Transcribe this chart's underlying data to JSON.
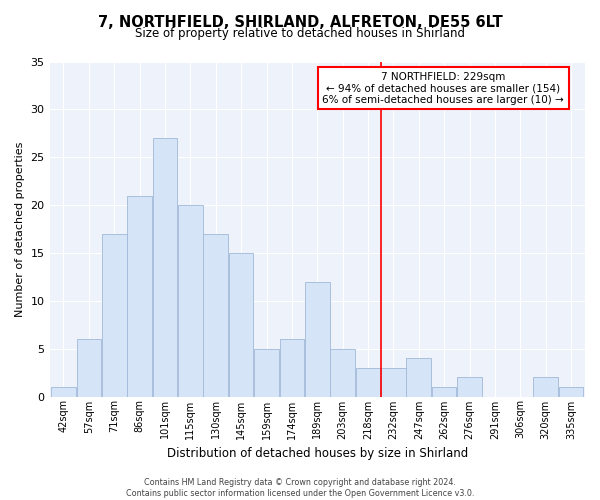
{
  "title": "7, NORTHFIELD, SHIRLAND, ALFRETON, DE55 6LT",
  "subtitle": "Size of property relative to detached houses in Shirland",
  "xlabel": "Distribution of detached houses by size in Shirland",
  "ylabel": "Number of detached properties",
  "bin_labels": [
    "42sqm",
    "57sqm",
    "71sqm",
    "86sqm",
    "101sqm",
    "115sqm",
    "130sqm",
    "145sqm",
    "159sqm",
    "174sqm",
    "189sqm",
    "203sqm",
    "218sqm",
    "232sqm",
    "247sqm",
    "262sqm",
    "276sqm",
    "291sqm",
    "306sqm",
    "320sqm",
    "335sqm"
  ],
  "bar_heights": [
    1,
    6,
    17,
    21,
    27,
    20,
    17,
    15,
    5,
    6,
    12,
    5,
    3,
    3,
    4,
    1,
    2,
    0,
    0,
    2,
    1
  ],
  "bar_color": "#d6e4f7",
  "bar_edge_color": "#a0b8d8",
  "vline_x_index": 13,
  "vline_color": "red",
  "annotation_text": "7 NORTHFIELD: 229sqm\n← 94% of detached houses are smaller (154)\n6% of semi-detached houses are larger (10) →",
  "annotation_box_color": "white",
  "annotation_box_edge_color": "red",
  "ylim": [
    0,
    35
  ],
  "yticks": [
    0,
    5,
    10,
    15,
    20,
    25,
    30,
    35
  ],
  "footer_text": "Contains HM Land Registry data © Crown copyright and database right 2024.\nContains public sector information licensed under the Open Government Licence v3.0.",
  "bg_color": "white",
  "plot_bg_color": "#eef3fb",
  "grid_color": "#ffffff"
}
